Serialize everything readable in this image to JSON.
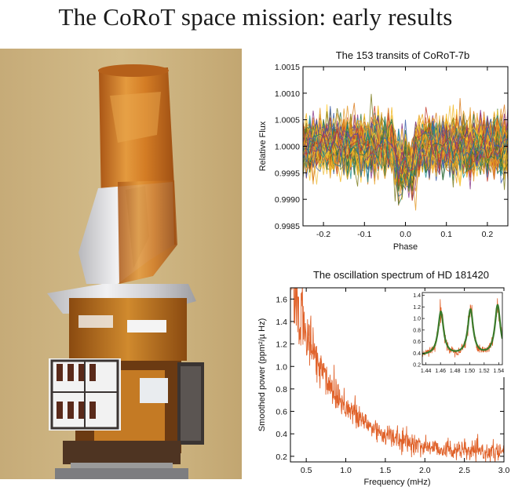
{
  "page": {
    "title": "The CoRoT space mission: early results"
  },
  "photo": {
    "subject": "CoRoT satellite",
    "colors": {
      "background": "#c9b07a",
      "foil_orange": "#d9862e",
      "foil_silver": "#d8d8dc",
      "panel_dark": "#3a3432"
    }
  },
  "chart_data": [
    {
      "type": "line",
      "title": "The 153 transits of CoRoT-7b",
      "xlabel": "Phase",
      "ylabel": "Relative Flux",
      "xlim": [
        -0.25,
        0.25
      ],
      "ylim": [
        0.9985,
        1.0015
      ],
      "xticks": [
        "-0.2",
        "-0.1",
        "0.0",
        "0.1",
        "0.2"
      ],
      "yticks": [
        "0.9985",
        "0.9990",
        "0.9995",
        "1.0000",
        "1.0005",
        "1.0010",
        "1.0015"
      ],
      "n_curves": 153,
      "transit": {
        "center": 0.0,
        "half_width": 0.02,
        "depth": 0.00035
      },
      "noise_sigma": 0.00025,
      "colors": [
        "#e8a020",
        "#f2b71f",
        "#ffcc33",
        "#d97a1a",
        "#2f6f3a",
        "#3a5aa8",
        "#8a3a8a",
        "#c23a2a",
        "#1f8f8f",
        "#7a7a1a",
        "#f0c040",
        "#e39a2a"
      ],
      "grid": false,
      "legend": "none"
    },
    {
      "type": "line",
      "title": "The oscillation spectrum of HD 181420",
      "xlabel": "Frequency (mHz)",
      "ylabel": "Smoothed power (ppm²/µ Hz)",
      "xlim": [
        0.3,
        3.0
      ],
      "ylim": [
        0.15,
        1.7
      ],
      "xticks": [
        "0.5",
        "1.0",
        "1.5",
        "2.0",
        "2.5",
        "3.0"
      ],
      "yticks": [
        "0.2",
        "0.4",
        "0.6",
        "0.8",
        "1.0",
        "1.2",
        "1.4",
        "1.6"
      ],
      "series": [
        {
          "color": "#e0622a",
          "model": "background-decay",
          "a": 0.22,
          "b": 1.55,
          "tau": 0.55,
          "noise": 0.08
        }
      ],
      "inset": {
        "xlim": [
          1.435,
          1.545
        ],
        "ylim": [
          0.2,
          1.45
        ],
        "xticks": [
          "1.44",
          "1.46",
          "1.48",
          "1.50",
          "1.52",
          "1.54"
        ],
        "yticks": [
          "0.2",
          "0.4",
          "0.6",
          "0.8",
          "1.0",
          "1.2",
          "1.4"
        ],
        "peaks": [
          {
            "x": 1.4605,
            "height": 0.75
          },
          {
            "x": 1.5012,
            "height": 0.78
          },
          {
            "x": 1.5385,
            "height": 0.86
          }
        ],
        "peak_width": 0.0045,
        "baseline": 0.36,
        "noise_color": "#e0622a",
        "fit_color": "#3a7a2a"
      },
      "grid": false,
      "legend": "none"
    }
  ]
}
